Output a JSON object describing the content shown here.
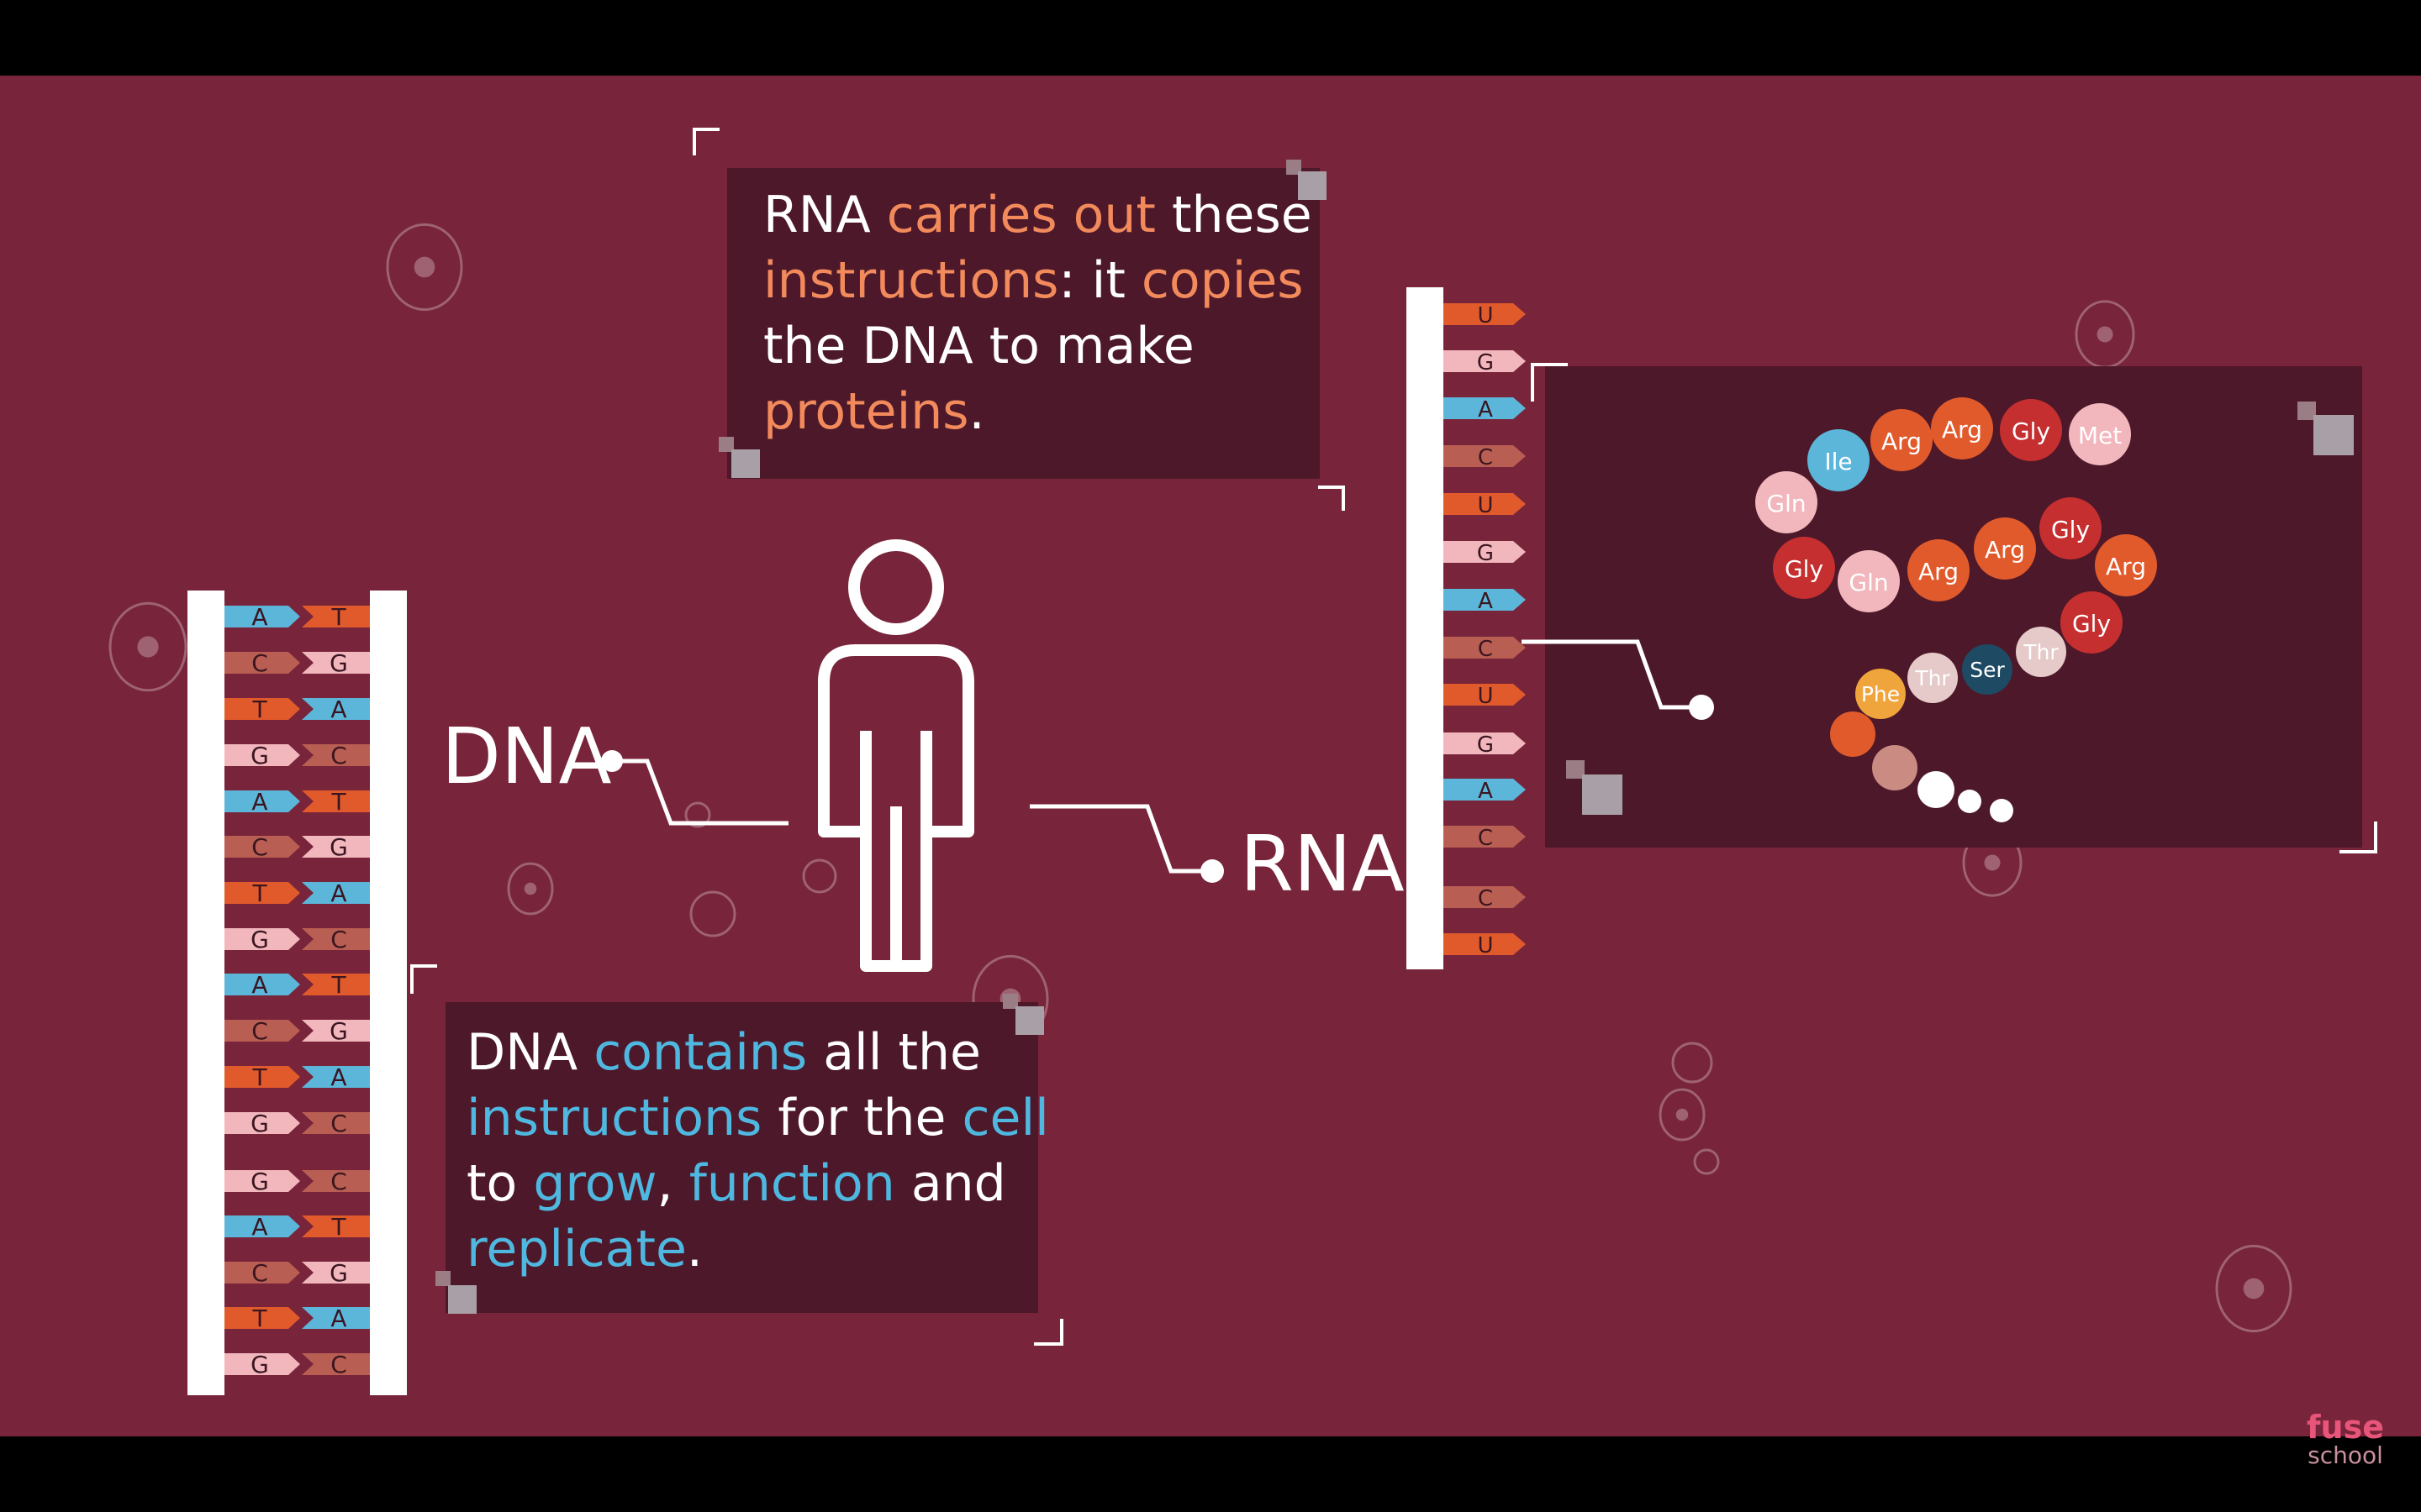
{
  "colors": {
    "background": "#78243a",
    "panel": "#4d1829",
    "orange": "#f28a5c",
    "blue": "#4fb8e0",
    "base_A": "#5bb6d9",
    "base_T": "#e15a2b",
    "base_C": "#b95e52",
    "base_G": "#f2b6bd",
    "base_U": "#e15a2b"
  },
  "labels": {
    "dna": "DNA",
    "rna": "RNA",
    "brand_top": "fuse",
    "brand_bottom": "school"
  },
  "rna_box": {
    "lines": [
      [
        {
          "t": "RNA ",
          "hl": false
        },
        {
          "t": "carries out",
          "hl": true
        },
        {
          "t": " these",
          "hl": false
        }
      ],
      [
        {
          "t": "instructions",
          "hl": true
        },
        {
          "t": ": it ",
          "hl": false
        },
        {
          "t": "copies",
          "hl": true
        }
      ],
      [
        {
          "t": "the DNA to make",
          "hl": false
        }
      ],
      [
        {
          "t": "proteins",
          "hl": true
        },
        {
          "t": ".",
          "hl": false
        }
      ]
    ]
  },
  "dna_box": {
    "lines": [
      [
        {
          "t": "DNA ",
          "hl": false
        },
        {
          "t": "contains",
          "hl": true
        },
        {
          "t": " all the",
          "hl": false
        }
      ],
      [
        {
          "t": "instructions",
          "hl": true
        },
        {
          "t": " for the ",
          "hl": false
        },
        {
          "t": "cell",
          "hl": true
        }
      ],
      [
        {
          "t": "to ",
          "hl": false
        },
        {
          "t": "grow",
          "hl": true
        },
        {
          "t": ", ",
          "hl": false
        },
        {
          "t": "function",
          "hl": true
        },
        {
          "t": " and",
          "hl": false
        }
      ],
      [
        {
          "t": "replicate",
          "hl": true
        },
        {
          "t": ".",
          "hl": false
        }
      ]
    ]
  },
  "dna_pairs": [
    [
      "A",
      "T"
    ],
    [
      "C",
      "G"
    ],
    [
      "T",
      "A"
    ],
    [
      "G",
      "C"
    ],
    [
      "A",
      "T"
    ],
    [
      "C",
      "G"
    ],
    [
      "T",
      "A"
    ],
    [
      "G",
      "C"
    ],
    [
      "A",
      "T"
    ],
    [
      "C",
      "G"
    ],
    [
      "T",
      "A"
    ],
    [
      "G",
      "C"
    ],
    [
      "G",
      "C"
    ],
    [
      "A",
      "T"
    ],
    [
      "C",
      "G"
    ],
    [
      "T",
      "A"
    ],
    [
      "G",
      "C"
    ]
  ],
  "rna_bases": [
    "U",
    "G",
    "A",
    "C",
    "U",
    "G",
    "A",
    "C",
    "U",
    "G",
    "A",
    "C",
    "C",
    "U"
  ],
  "amino_acids": [
    {
      "name": "Met",
      "color": "#f2b6bd"
    },
    {
      "name": "Gly",
      "color": "#c62f2f"
    },
    {
      "name": "Arg",
      "color": "#e15a2b"
    },
    {
      "name": "Arg",
      "color": "#e15a2b"
    },
    {
      "name": "Ile",
      "color": "#5bb6d9"
    },
    {
      "name": "Gln",
      "color": "#f2b6bd"
    },
    {
      "name": "Gly",
      "color": "#c62f2f"
    },
    {
      "name": "Gln",
      "color": "#f2b6bd"
    },
    {
      "name": "Arg",
      "color": "#e15a2b"
    },
    {
      "name": "Arg",
      "color": "#e15a2b"
    },
    {
      "name": "Gly",
      "color": "#c62f2f"
    },
    {
      "name": "Arg",
      "color": "#e15a2b"
    },
    {
      "name": "Gly",
      "color": "#c62f2f"
    },
    {
      "name": "Thr",
      "color": "#e6c9c9"
    },
    {
      "name": "Ser",
      "color": "#1e4a63"
    },
    {
      "name": "Thr",
      "color": "#e6c9c9"
    },
    {
      "name": "Phe",
      "color": "#f0a43c"
    },
    {
      "name": "",
      "color": "#e15a2b"
    },
    {
      "name": "",
      "color": "#c98b82"
    },
    {
      "name": "",
      "color": "#ffffff"
    },
    {
      "name": "",
      "color": "#ffffff"
    },
    {
      "name": "",
      "color": "#ffffff"
    }
  ]
}
